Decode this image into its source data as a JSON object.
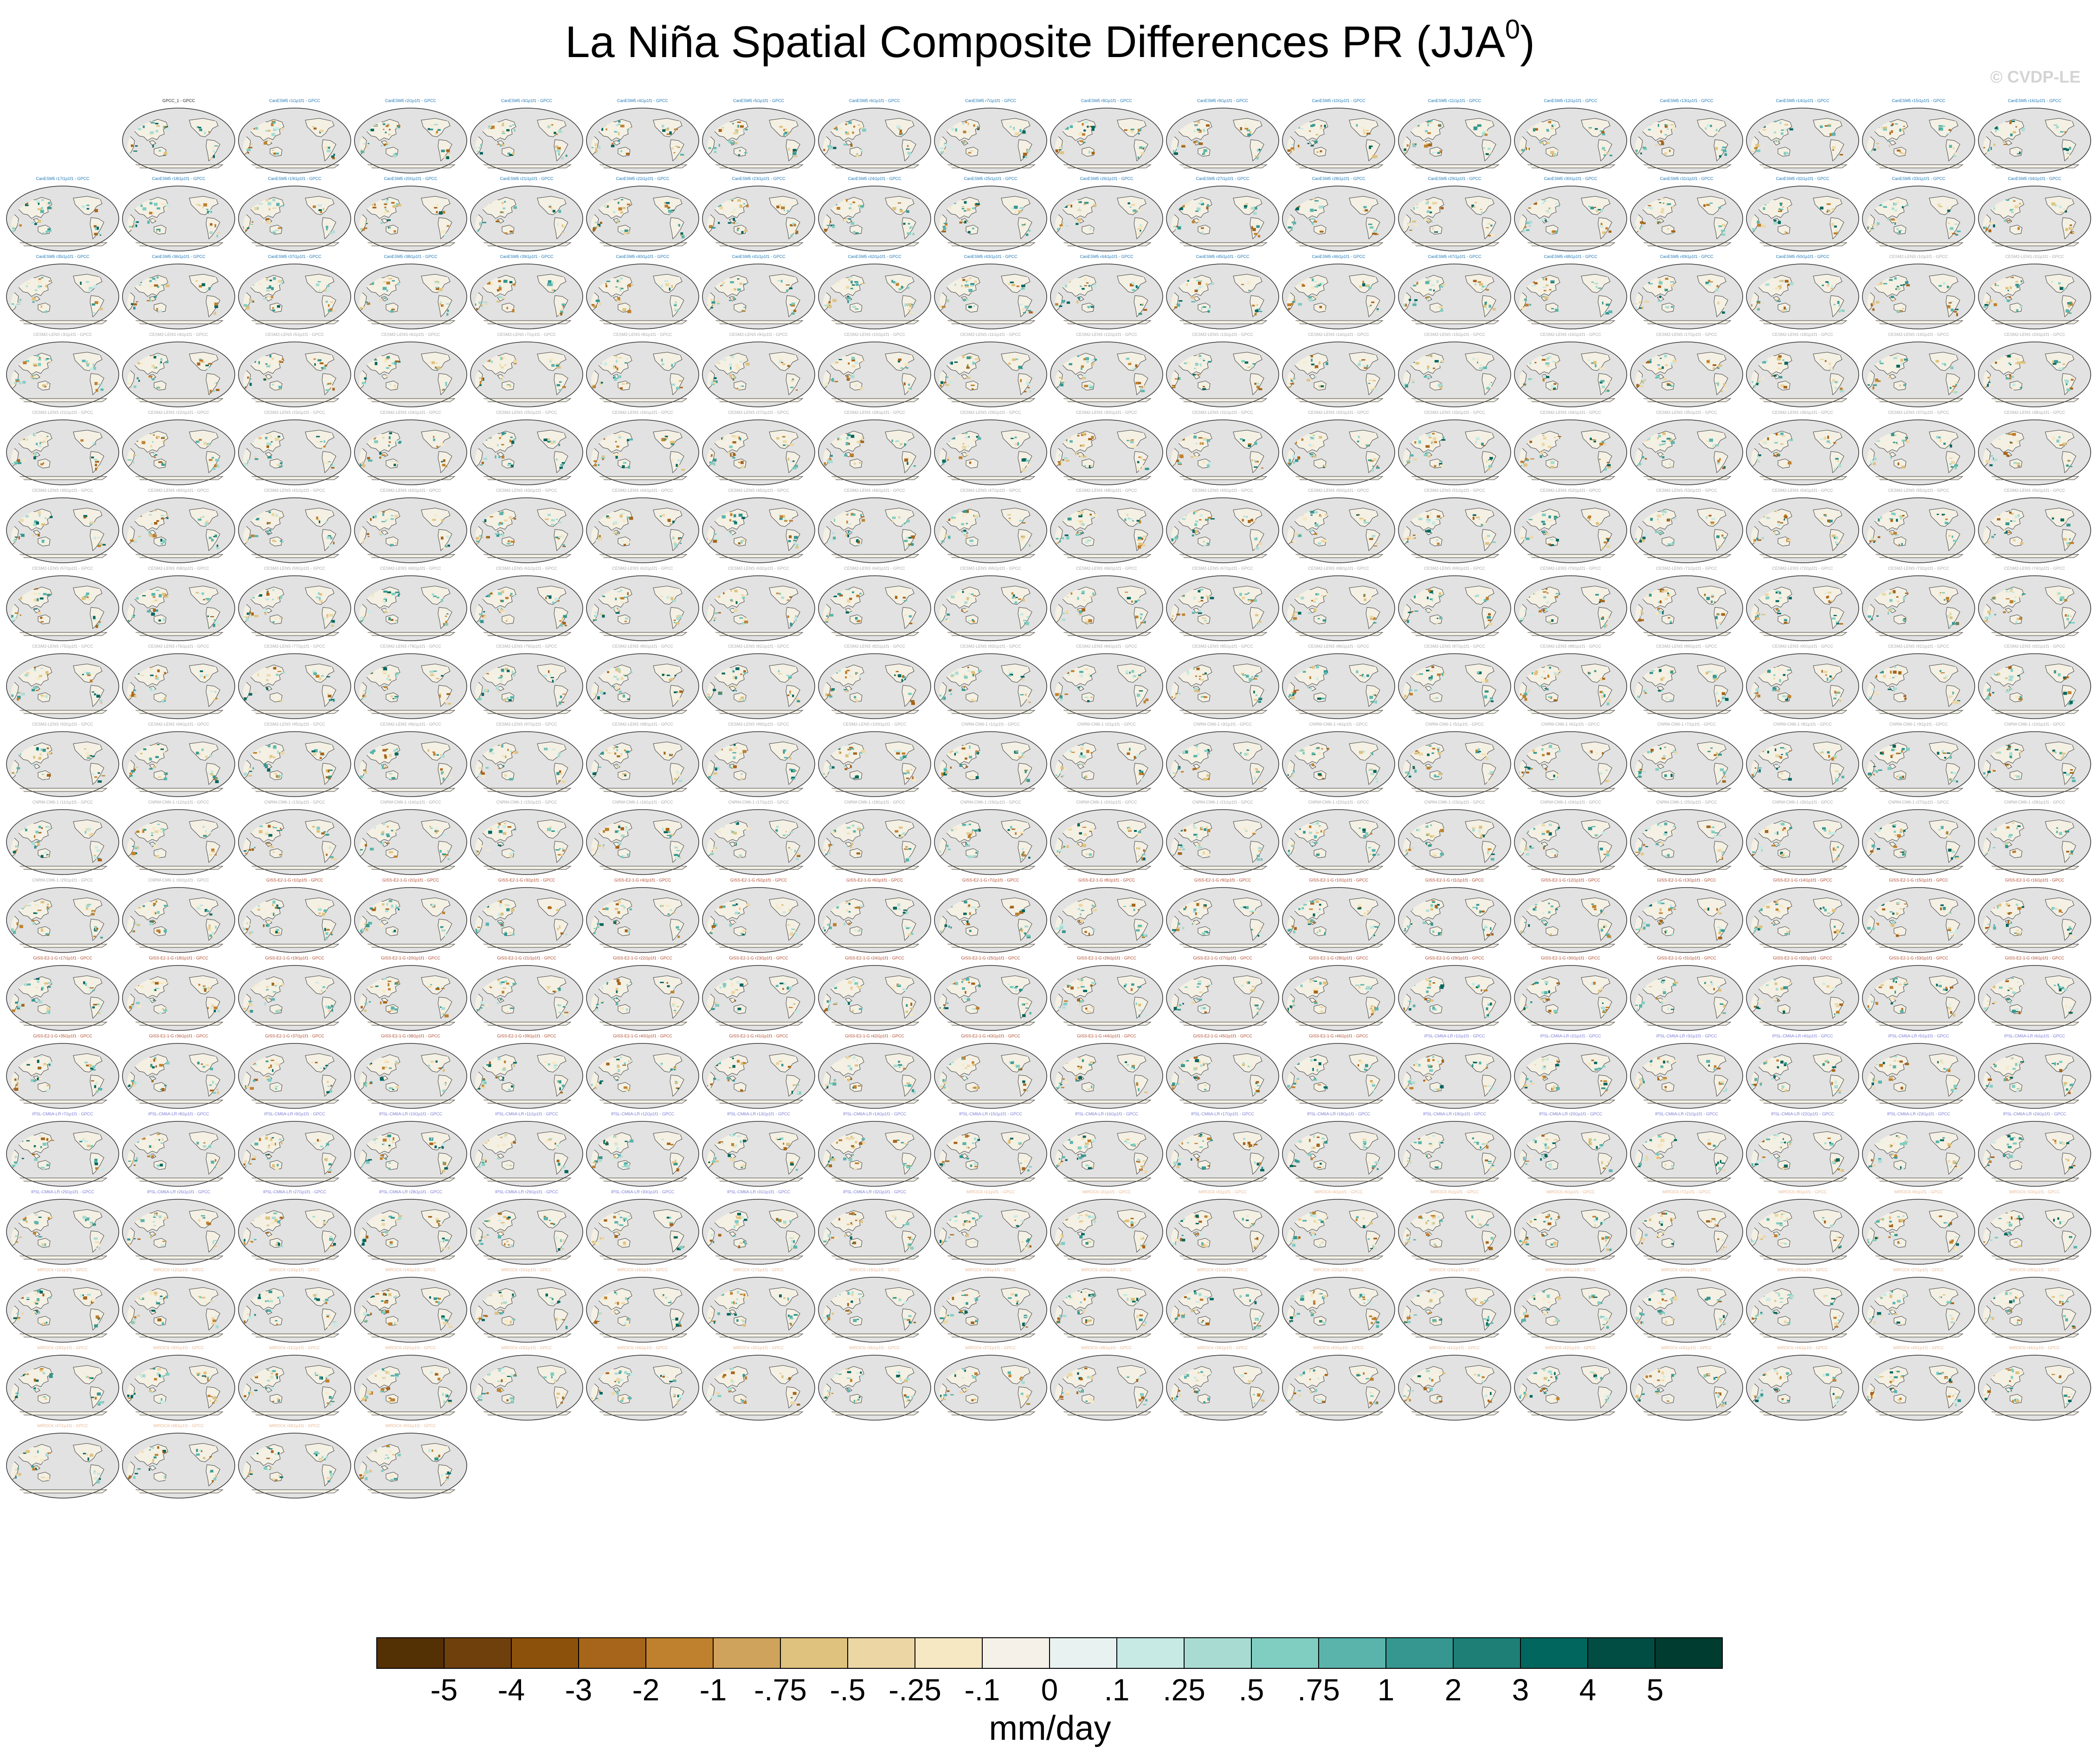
{
  "title": {
    "main": "La Niña Spatial Composite Differences PR (JJA",
    "superscript": "0",
    "close": ")"
  },
  "watermark": "© CVDP-LE",
  "colorbar": {
    "units": "mm/day",
    "tick_labels": [
      "-5",
      "-4",
      "-3",
      "-2",
      "-1",
      "-.75",
      "-.5",
      "-.25",
      "-.1",
      "0",
      ".1",
      ".25",
      ".5",
      ".75",
      "1",
      "2",
      "3",
      "4",
      "5"
    ],
    "colors": [
      "#543005",
      "#6f3f0c",
      "#8c510a",
      "#a6651a",
      "#bf812d",
      "#cfa35b",
      "#dfc27d",
      "#ecd7a4",
      "#f6e8c3",
      "#f5f1e8",
      "#e8f3f1",
      "#c7eae5",
      "#a8dcd3",
      "#80cdc1",
      "#5ab4ac",
      "#35978f",
      "#1d7f75",
      "#01665e",
      "#014c43",
      "#003c30"
    ]
  },
  "panels": {
    "reference_title": "GPCC_1 - GPCC",
    "ocean_color": "#e2e2e2",
    "land_color": "#f4f0e4",
    "coast_color": "#444444",
    "groups": [
      {
        "model": "CanESM5",
        "count": 50,
        "title_color": "#1f77b4"
      },
      {
        "model": "CESM2-LENS",
        "count": 100,
        "title_color": "#aaaaaa"
      },
      {
        "model": "CNRM-CM6-1",
        "count": 30,
        "title_color": "#aaaaaa"
      },
      {
        "model": "GISS-E2-1-G",
        "count": 46,
        "title_color": "#b04a2e"
      },
      {
        "model": "IPSL-CM6A-LR",
        "count": 32,
        "title_color": "#7b7bd6"
      },
      {
        "model": "MIROC6",
        "count": 50,
        "title_color": "#e8b894"
      }
    ]
  }
}
